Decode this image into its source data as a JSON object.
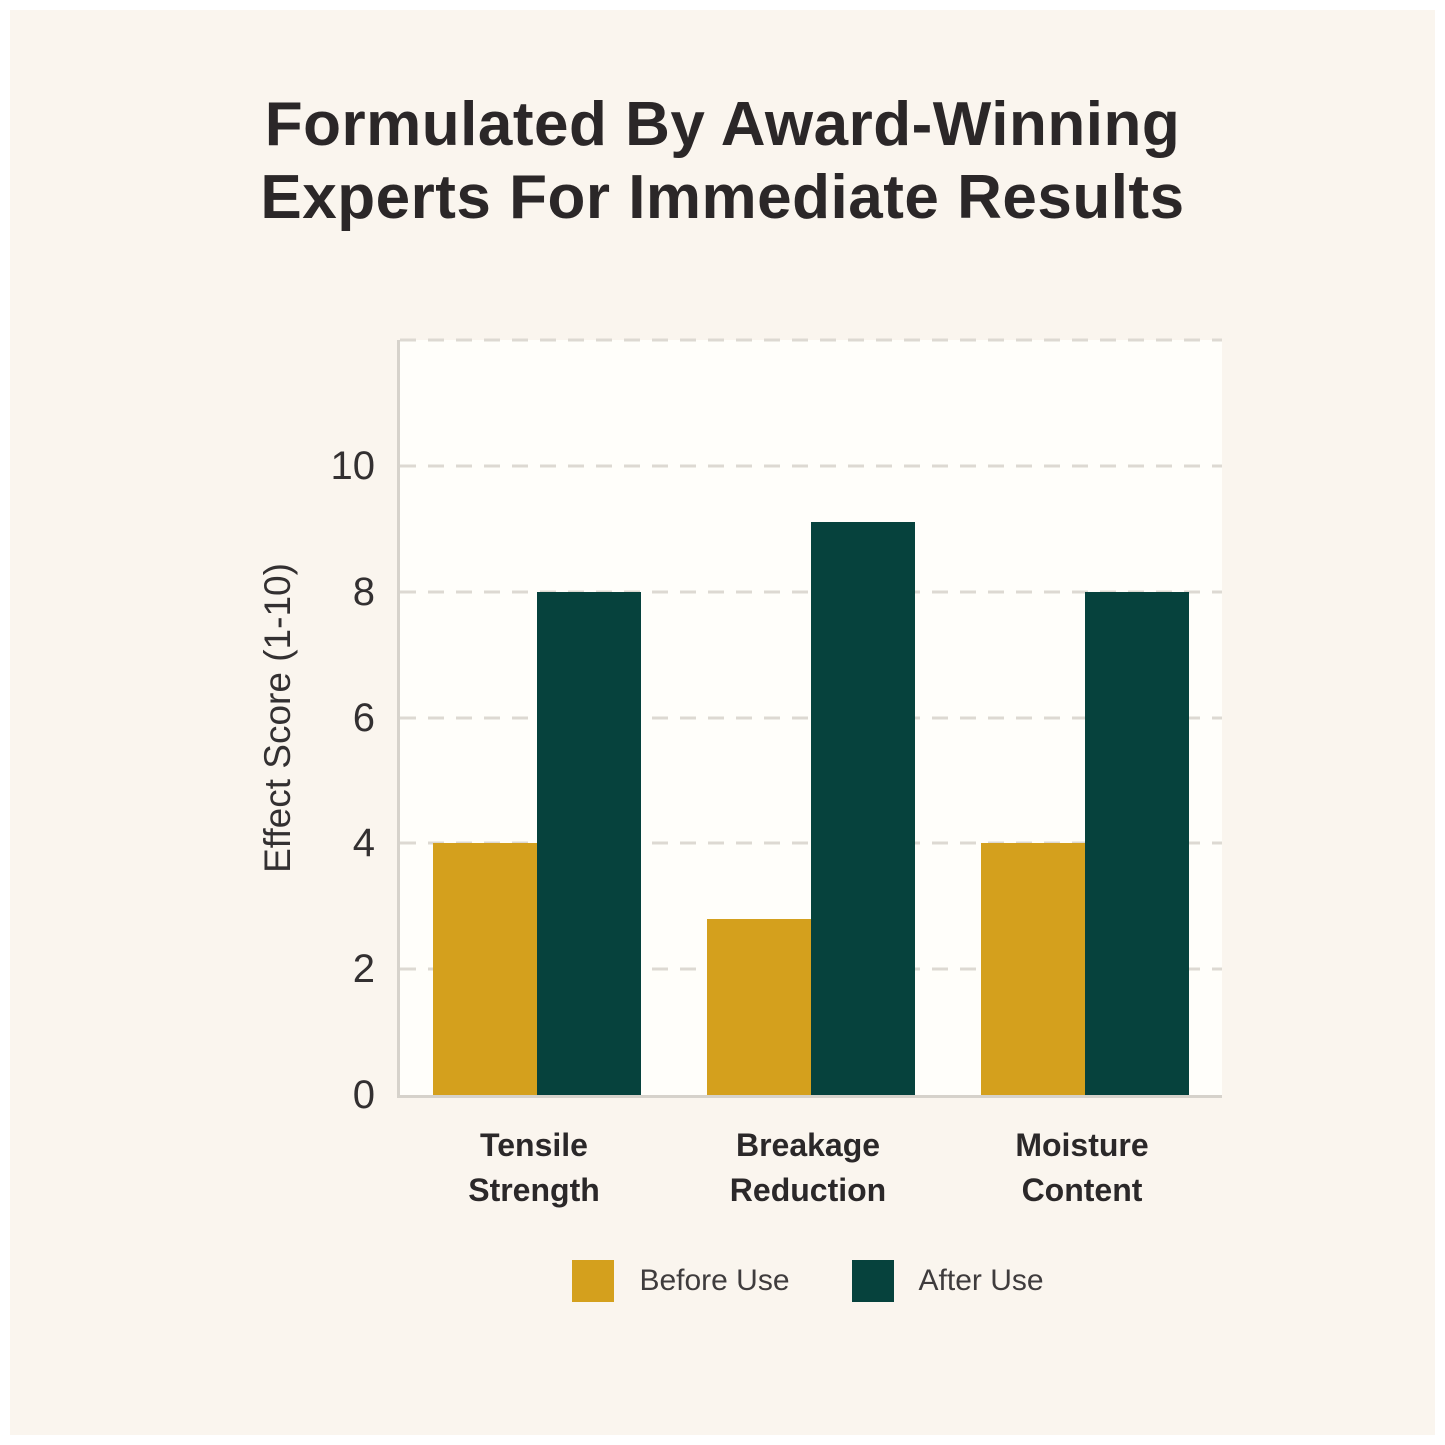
{
  "title": "Formulated By Award-Winning Experts For Immediate Results",
  "chart_data": {
    "type": "bar",
    "title": "Formulated By Award-Winning Experts For Immediate Results",
    "categories": [
      "Tensile Strength",
      "Breakage Reduction",
      "Moisture Content"
    ],
    "series": [
      {
        "name": "Before Use",
        "color": "#D4A01D",
        "values": [
          4,
          2.8,
          4
        ]
      },
      {
        "name": "After Use",
        "color": "#06423D",
        "values": [
          8,
          9.1,
          8
        ]
      }
    ],
    "xlabel": "",
    "ylabel": "Effect Score (1-10)",
    "yticks": [
      0,
      2,
      4,
      6,
      8,
      10
    ],
    "ylim": [
      0,
      12
    ],
    "grid": "horizontal-dashed",
    "legend_position": "bottom"
  },
  "colors": {
    "page_background": "#FFFFFF",
    "panel_background": "#FAF5EE",
    "plot_background": "#FFFEFA",
    "gridline": "#DDD9D2",
    "axis_line": "#D6D2CB",
    "title_text": "#2B2728",
    "tick_text": "#333031",
    "category_text": "#2B2829",
    "legend_text": "#3F3C3D",
    "before_use": "#D4A01D",
    "after_use": "#06423D"
  }
}
